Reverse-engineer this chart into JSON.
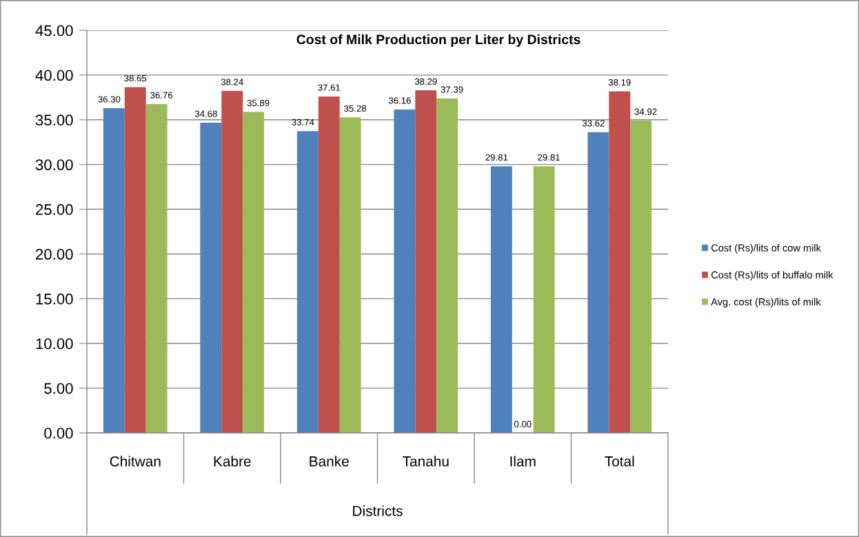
{
  "chart_data": {
    "type": "bar",
    "title": "Cost of Milk Production per Liter by Districts",
    "xlabel": "Districts",
    "categories": [
      "Chitwan",
      "Kabre",
      "Banke",
      "Tanahu",
      "Ilam",
      "Total"
    ],
    "series": [
      {
        "name": "Cost (Rs)/lits of cow milk",
        "color": "#4f81bd",
        "values": [
          36.3,
          34.68,
          33.74,
          36.16,
          29.81,
          33.62
        ],
        "value_labels": [
          "36.30",
          "34.68",
          "33.74",
          "36.16",
          "29.81",
          "33.62"
        ]
      },
      {
        "name": "Cost (Rs)/lits of buffalo milk",
        "color": "#c0504d",
        "values": [
          38.65,
          38.24,
          37.61,
          38.29,
          0,
          38.19
        ],
        "value_labels": [
          "38.65",
          "38.24",
          "37.61",
          "38.29",
          "0.00",
          "38.19"
        ]
      },
      {
        "name": "Avg. cost (Rs)/lits of milk",
        "color": "#9bbb59",
        "values": [
          36.76,
          35.89,
          35.28,
          37.39,
          29.81,
          34.92
        ],
        "value_labels": [
          "36.76",
          "35.89",
          "35.28",
          "37.39",
          "29.81",
          "34.92"
        ]
      }
    ],
    "ylim": [
      0,
      45
    ],
    "yticks": [
      {
        "value": 0,
        "label": "0.00"
      },
      {
        "value": 5,
        "label": "5.00"
      },
      {
        "value": 10,
        "label": "10.00"
      },
      {
        "value": 15,
        "label": "15.00"
      },
      {
        "value": 20,
        "label": "20.00"
      },
      {
        "value": 25,
        "label": "25.00"
      },
      {
        "value": 30,
        "label": "30.00"
      },
      {
        "value": 35,
        "label": "35.00"
      },
      {
        "value": 40,
        "label": "40.00"
      },
      {
        "value": 45,
        "label": "45.00"
      }
    ],
    "grid": "y",
    "legend": "right"
  }
}
